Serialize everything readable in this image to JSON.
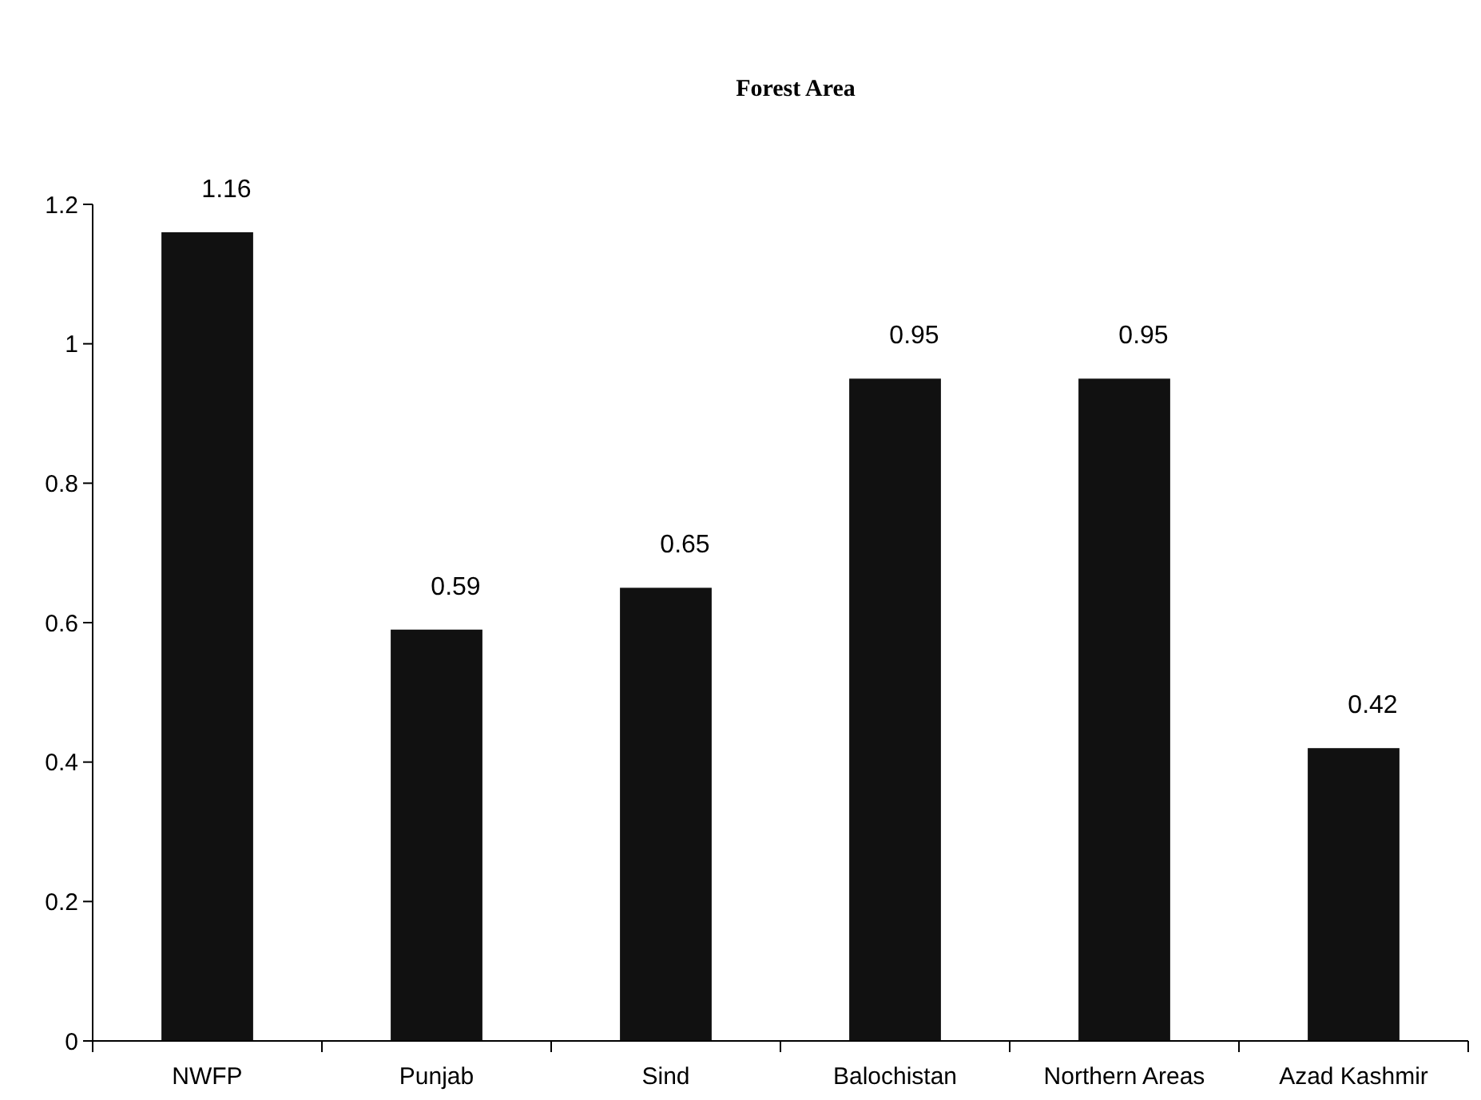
{
  "chart_data": {
    "type": "bar",
    "title": "Forest Area",
    "categories": [
      "NWFP",
      "Punjab",
      "Sind",
      "Balochistan",
      "Northern Areas",
      "Azad Kashmir"
    ],
    "values": [
      1.16,
      0.59,
      0.65,
      0.95,
      0.95,
      0.42
    ],
    "color": "#111111",
    "ylim": [
      0,
      1.2
    ],
    "yticks": [
      0,
      0.2,
      0.4,
      0.6,
      0.8,
      1,
      1.2
    ],
    "data_labels": true
  }
}
